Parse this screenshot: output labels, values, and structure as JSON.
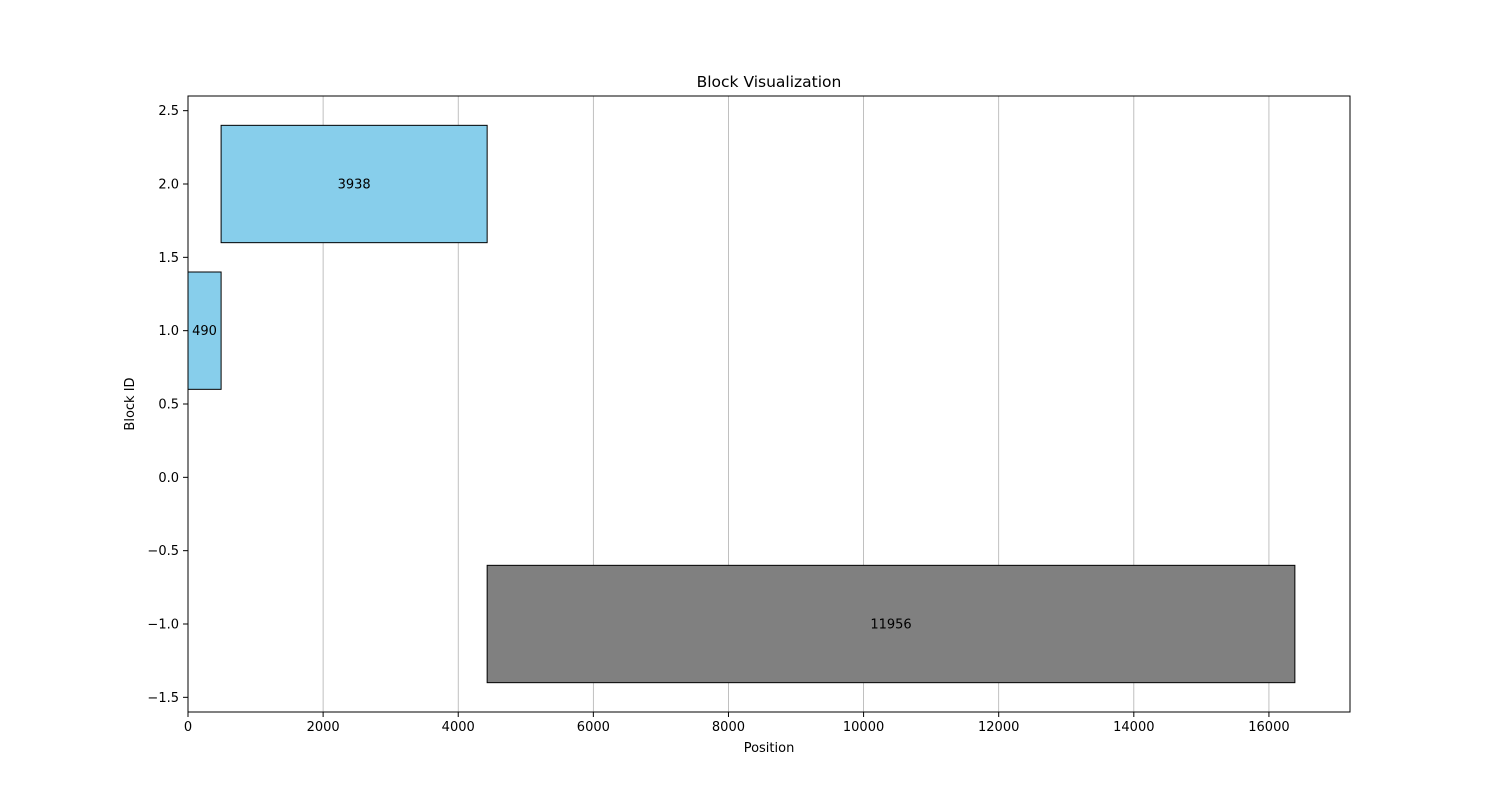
{
  "chart_data": {
    "type": "bar",
    "orientation": "horizontal",
    "title": "Block Visualization",
    "xlabel": "Position",
    "ylabel": "Block ID",
    "xlim": [
      0,
      17200
    ],
    "ylim": [
      -1.6,
      2.6
    ],
    "xticks": [
      0,
      2000,
      4000,
      6000,
      8000,
      10000,
      12000,
      14000,
      16000
    ],
    "yticks": [
      -1.5,
      -1.0,
      -0.5,
      0.0,
      0.5,
      1.0,
      1.5,
      2.0,
      2.5
    ],
    "ytick_labels": [
      "−1.5",
      "−1.0",
      "−0.5",
      "0.0",
      "0.5",
      "1.0",
      "1.5",
      "2.0",
      "2.5"
    ],
    "grid": "x",
    "bars": [
      {
        "id": 1,
        "start": 0,
        "length": 490,
        "label": "490",
        "color": "#87ceeb"
      },
      {
        "id": 2,
        "start": 490,
        "length": 3938,
        "label": "3938",
        "color": "#87ceeb"
      },
      {
        "id": -1,
        "start": 4428,
        "length": 11956,
        "label": "11956",
        "color": "#808080"
      }
    ],
    "bar_height": 0.8
  }
}
